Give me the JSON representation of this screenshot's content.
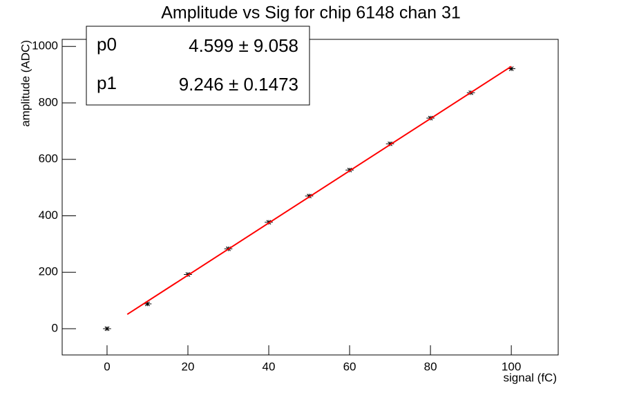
{
  "chart_data": {
    "type": "scatter",
    "title": "Amplitude vs Sig for chip 6148 chan 31",
    "x_label": "signal (fC)",
    "y_label": "amplitude (ADC)",
    "xlim": [
      -11.1,
      111.6
    ],
    "ylim": [
      -93,
      1025
    ],
    "xticks": [
      0,
      20,
      40,
      60,
      80,
      100
    ],
    "yticks": [
      0,
      200,
      400,
      600,
      800,
      1000
    ],
    "series": [
      {
        "name": "data",
        "color": "#000000",
        "x": [
          0,
          10,
          20,
          30,
          40,
          50,
          60,
          70,
          80,
          90,
          100
        ],
        "values": [
          0,
          88,
          192,
          283,
          377,
          470,
          562,
          655,
          746,
          836,
          921
        ],
        "xerr": [
          1,
          1,
          1,
          1,
          1,
          1,
          1,
          1,
          1,
          1,
          1
        ],
        "yerr": [
          8,
          8,
          8,
          8,
          8,
          8,
          8,
          8,
          8,
          8,
          8
        ]
      },
      {
        "name": "fit",
        "color": "#ff0000",
        "x": [
          5,
          100
        ],
        "values": [
          50.8,
          929.2
        ]
      }
    ]
  },
  "stats": [
    {
      "name": "p0",
      "value": "4.599 ± 9.058"
    },
    {
      "name": "p1",
      "value": "9.246 ± 0.1473"
    }
  ]
}
